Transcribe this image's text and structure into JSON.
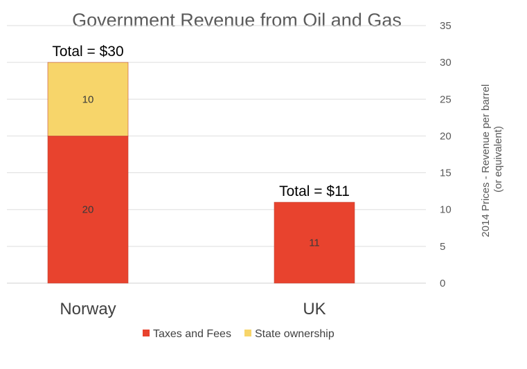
{
  "chart_data": {
    "type": "bar",
    "stacked": true,
    "title": "Government Revenue from Oil and Gas",
    "xlabel": "",
    "ylabel": [
      "2014 Prices - Revenue per barrel",
      "(or equivalent)"
    ],
    "y_axis_side": "right",
    "ylim": [
      0,
      35
    ],
    "yticks": [
      0,
      5,
      10,
      15,
      20,
      25,
      30,
      35
    ],
    "grid": true,
    "legend_position": "bottom",
    "categories": [
      "Norway",
      "UK"
    ],
    "series": [
      {
        "name": "Taxes and Fees",
        "color": "#E8432E",
        "values": [
          20,
          11
        ],
        "value_labels": [
          "20",
          "11"
        ]
      },
      {
        "name": "State ownership",
        "color": "#F7D56A",
        "values": [
          10,
          0
        ],
        "value_labels": [
          "10",
          ""
        ]
      }
    ],
    "annotations": [
      "Total = $30",
      "Total = $11"
    ]
  }
}
